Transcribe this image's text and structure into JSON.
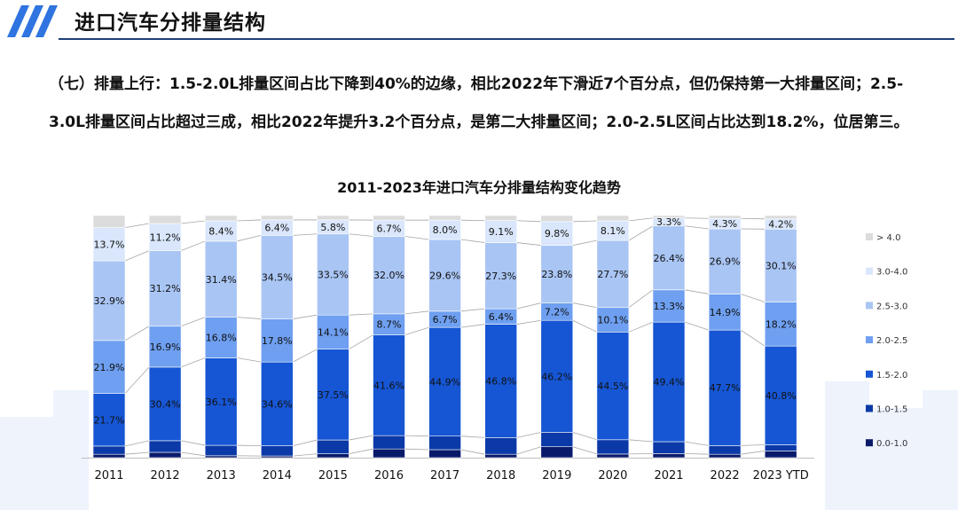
{
  "header": {
    "title": "进口汽车分排量结构"
  },
  "paragraph": {
    "text": "（七）排量上行：1.5-2.0L排量区间占比下降到40%的边缘，相比2022年下滑近7个百分点，但仍保持第一大排量区间；2.5-3.0L排量区间占比超过三成，相比2022年提升3.2个百分点，是第二大排量区间；2.0-2.5L区间占比达到18.2%，位居第三。"
  },
  "chart_data": {
    "type": "stacked-bar-100",
    "title": "2011-2023年进口汽车分排量结构变化趋势",
    "categories": [
      "2011",
      "2012",
      "2013",
      "2014",
      "2015",
      "2016",
      "2017",
      "2018",
      "2019",
      "2020",
      "2021",
      "2022",
      "2023 YTD"
    ],
    "series": [
      {
        "name": "0.0-1.0",
        "color": "#0a1a6b",
        "values": [
          1.4,
          2.2,
          0.8,
          0.7,
          1.6,
          3.6,
          3.3,
          1.4,
          4.5,
          1.5,
          1.7,
          1.4,
          2.8
        ],
        "labels": [
          "",
          "",
          "",
          "",
          "",
          "",
          "",
          "",
          "",
          "",
          "",
          "",
          ""
        ]
      },
      {
        "name": "1.0-1.5",
        "color": "#0b3aa8",
        "values": [
          3.4,
          4.8,
          4.3,
          4.2,
          5.7,
          5.5,
          5.6,
          6.9,
          6.0,
          5.9,
          4.9,
          3.6,
          2.5
        ],
        "labels": [
          "",
          "",
          "",
          "",
          "",
          "",
          "",
          "",
          "",
          "",
          "",
          "",
          ""
        ]
      },
      {
        "name": "1.5-2.0",
        "color": "#1656d4",
        "values": [
          21.7,
          30.4,
          36.1,
          34.6,
          37.5,
          41.6,
          44.9,
          46.8,
          46.2,
          44.5,
          49.4,
          47.7,
          40.8
        ],
        "labels": [
          "21.7%",
          "30.4%",
          "36.1%",
          "34.6%",
          "37.5%",
          "41.6%",
          "44.9%",
          "46.8%",
          "46.2%",
          "44.5%",
          "49.4%",
          "47.7%",
          "40.8%"
        ]
      },
      {
        "name": "2.0-2.5",
        "color": "#6e9ff0",
        "values": [
          21.9,
          16.9,
          16.8,
          17.8,
          14.1,
          8.7,
          6.7,
          6.4,
          7.2,
          10.1,
          13.3,
          14.9,
          18.2
        ],
        "labels": [
          "21.9%",
          "16.9%",
          "16.8%",
          "17.8%",
          "14.1%",
          "8.7%",
          "6.7%",
          "6.4%",
          "7.2%",
          "10.1%",
          "13.3%",
          "14.9%",
          "18.2%"
        ]
      },
      {
        "name": "2.5-3.0",
        "color": "#a9c5f4",
        "values": [
          32.9,
          31.2,
          31.4,
          34.5,
          33.5,
          32.0,
          29.6,
          27.3,
          23.8,
          27.7,
          26.4,
          26.9,
          30.1
        ],
        "labels": [
          "32.9%",
          "31.2%",
          "31.4%",
          "34.5%",
          "33.5%",
          "32.0%",
          "29.6%",
          "27.3%",
          "23.8%",
          "27.7%",
          "26.4%",
          "26.9%",
          "30.1%"
        ]
      },
      {
        "name": "3.0-4.0",
        "color": "#d9e6fb",
        "values": [
          13.7,
          11.2,
          8.4,
          6.4,
          5.8,
          6.7,
          8.0,
          9.1,
          9.8,
          8.1,
          3.3,
          4.3,
          4.2
        ],
        "labels": [
          "13.7%",
          "11.2%",
          "8.4%",
          "6.4%",
          "5.8%",
          "6.7%",
          "8.0%",
          "9.1%",
          "9.8%",
          "8.1%",
          "3.3%",
          "4.3%",
          "4.2%"
        ]
      },
      {
        "name": "> 4.0",
        "color": "#dcdcdc",
        "values": [
          5.0,
          3.3,
          2.2,
          1.8,
          1.8,
          1.9,
          1.9,
          2.1,
          2.5,
          2.2,
          1.0,
          1.2,
          1.4
        ],
        "labels": [
          "",
          "",
          "",
          "",
          "",
          "",
          "",
          "",
          "",
          "",
          "",
          "",
          ""
        ]
      }
    ],
    "legend_order": [
      "> 4.0",
      "3.0-4.0",
      "2.5-3.0",
      "2.0-2.5",
      "1.5-2.0",
      "1.0-1.5",
      "0.0-1.0"
    ],
    "legend_position": "right",
    "ylim": [
      0,
      100
    ]
  }
}
